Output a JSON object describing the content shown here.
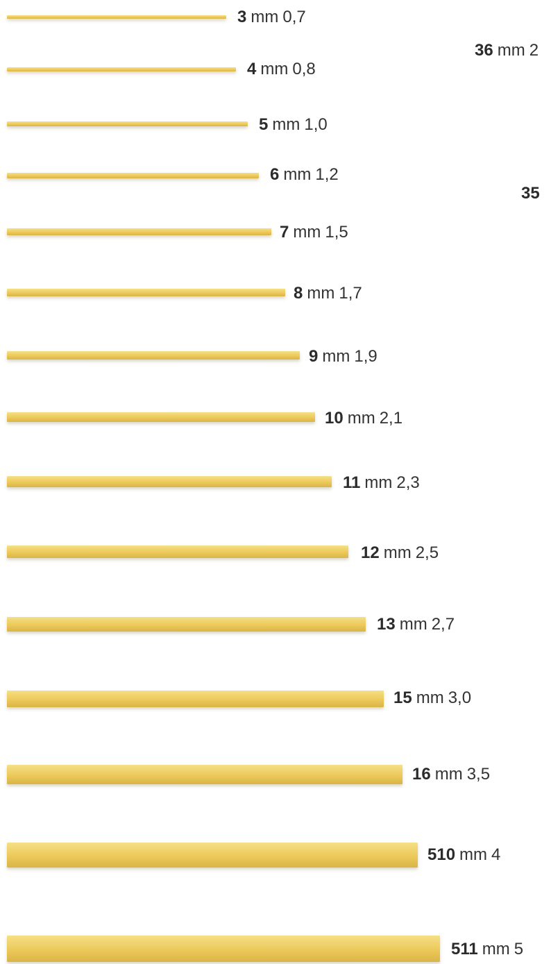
{
  "colors": {
    "pasta_light": "#f6df86",
    "pasta_mid": "#ecc95a",
    "pasta_dark": "#d9b446",
    "text": "#333333"
  },
  "strands": [
    {
      "code": "3",
      "unit": "mm",
      "size": "0,7"
    },
    {
      "code": "4",
      "unit": "mm",
      "size": "0,8"
    },
    {
      "code": "5",
      "unit": "mm",
      "size": "1,0"
    },
    {
      "code": "6",
      "unit": "mm",
      "size": "1,2"
    },
    {
      "code": "7",
      "unit": "mm",
      "size": "1,5"
    },
    {
      "code": "8",
      "unit": "mm",
      "size": "1,7"
    },
    {
      "code": "9",
      "unit": "mm",
      "size": "1,9"
    },
    {
      "code": "10",
      "unit": "mm",
      "size": "2,1"
    },
    {
      "code": "11",
      "unit": "mm",
      "size": "2,3"
    },
    {
      "code": "12",
      "unit": "mm",
      "size": "2,5"
    },
    {
      "code": "13",
      "unit": "mm",
      "size": "2,7"
    },
    {
      "code": "15",
      "unit": "mm",
      "size": "3,0"
    },
    {
      "code": "16",
      "unit": "mm",
      "size": "3,5"
    },
    {
      "code": "510",
      "unit": "mm",
      "size": "4"
    },
    {
      "code": "511",
      "unit": "mm",
      "size": "5"
    }
  ],
  "side_labels": [
    {
      "code": "36",
      "unit": "mm",
      "size": "2"
    },
    {
      "code": "35",
      "unit": "",
      "size": ""
    }
  ]
}
